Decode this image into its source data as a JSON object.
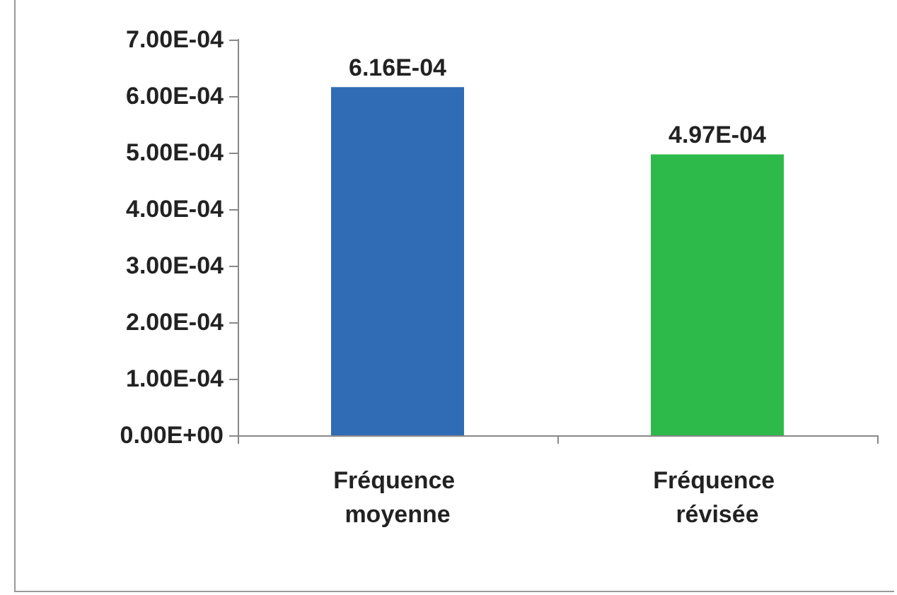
{
  "chart_data": {
    "type": "bar",
    "categories": [
      "Fréquence moyenne",
      "Fréquence révisée"
    ],
    "values": [
      0.000616,
      0.000497
    ],
    "colors": [
      "#2f6cb5",
      "#2dba4a"
    ],
    "value_labels": [
      "6.16E-04",
      "4.97E-04"
    ],
    "ylim": [
      0,
      0.0007
    ],
    "yticks": [
      {
        "value": 0,
        "label": "0.00E+00"
      },
      {
        "value": 0.0001,
        "label": "1.00E-04"
      },
      {
        "value": 0.0002,
        "label": "2.00E-04"
      },
      {
        "value": 0.0003,
        "label": "3.00E-04"
      },
      {
        "value": 0.0004,
        "label": "4.00E-04"
      },
      {
        "value": 0.0005,
        "label": "5.00E-04"
      },
      {
        "value": 0.0006,
        "label": "6.00E-04"
      },
      {
        "value": 0.0007,
        "label": "7.00E-04"
      }
    ],
    "grid": false
  }
}
